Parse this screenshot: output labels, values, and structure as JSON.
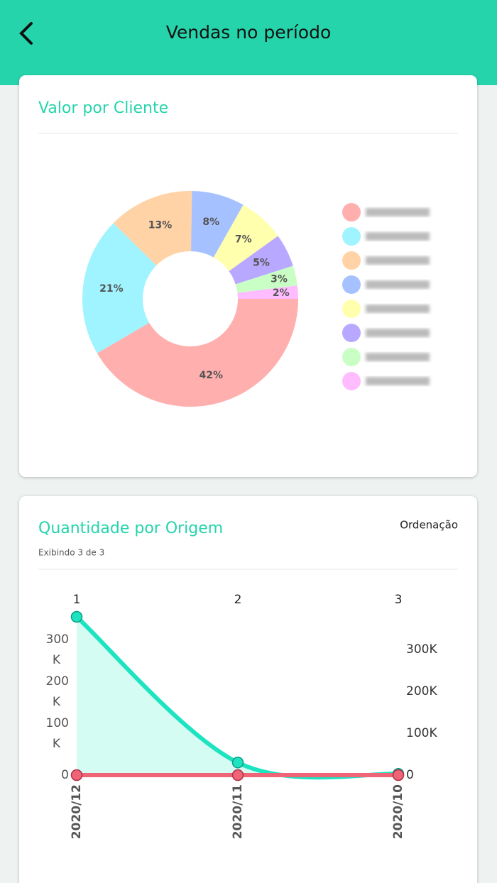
{
  "header": {
    "title": "Vendas no período"
  },
  "chart_data": [
    {
      "type": "pie",
      "title": "Valor por Cliente",
      "categories": [
        null,
        null,
        null,
        null,
        null,
        null,
        null,
        null
      ],
      "values": [
        42,
        21,
        13,
        8,
        7,
        5,
        3,
        2
      ],
      "value_labels": [
        "42%",
        "21%",
        "13%",
        "8%",
        "7%",
        "5%",
        "3%",
        "2%"
      ],
      "colors": [
        "#ffb0ae",
        "#9ff4ff",
        "#ffd3a5",
        "#a5c1ff",
        "#ffffae",
        "#b9a8ff",
        "#c9ffc4",
        "#ffbcff"
      ]
    },
    {
      "type": "line",
      "title": "Quantidade por Origem",
      "subtitle": "Exibindo 3 de 3",
      "sort_button": "Ordenação",
      "categories": [
        "2020/12",
        "2020/11",
        "2020/10"
      ],
      "x2_categories": [
        "1",
        "2",
        "3"
      ],
      "series": [
        {
          "color": "#1ee3c0",
          "values": [
            378000,
            30000,
            3000
          ]
        },
        {
          "color": "#ef6577",
          "values": [
            0,
            0,
            0
          ],
          "axis": "y2"
        }
      ],
      "ylim": [
        0,
        400000
      ],
      "yticks": [
        0,
        {
          "value": 100000,
          "label": "100 K"
        },
        {
          "value": 200000,
          "label": "200 K"
        },
        {
          "value": 300000,
          "label": "300 K"
        }
      ],
      "y2lim": [
        0,
        400000
      ],
      "y2ticks": [
        0,
        {
          "value": 100000,
          "label": "100K"
        },
        {
          "value": 200000,
          "label": "200K"
        },
        {
          "value": 300000,
          "label": "300K"
        }
      ],
      "area": true
    }
  ]
}
